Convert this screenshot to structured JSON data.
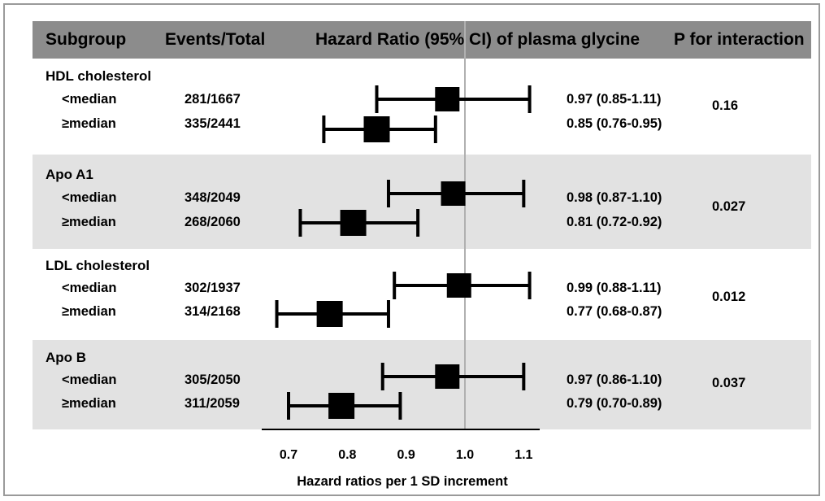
{
  "header": {
    "subgroup": "Subgroup",
    "events": "Events/Total",
    "hr": "Hazard Ratio (95% CI) of plasma glycine",
    "p": "P for interaction"
  },
  "groups": [
    {
      "label": "HDL cholesterol",
      "p": "0.16",
      "rows": [
        {
          "label": "<median",
          "events": "281/1667",
          "ci": "0.97 (0.85-1.11)"
        },
        {
          "label": "≥median",
          "events": "335/2441",
          "ci": "0.85 (0.76-0.95)"
        }
      ]
    },
    {
      "label": "Apo A1",
      "p": "0.027",
      "rows": [
        {
          "label": "<median",
          "events": "348/2049",
          "ci": "0.98 (0.87-1.10)"
        },
        {
          "label": "≥median",
          "events": "268/2060",
          "ci": "0.81 (0.72-0.92)"
        }
      ]
    },
    {
      "label": "LDL cholesterol",
      "p": "0.012",
      "rows": [
        {
          "label": "<median",
          "events": "302/1937",
          "ci": "0.99 (0.88-1.11)"
        },
        {
          "label": "≥median",
          "events": "314/2168",
          "ci": "0.77 (0.68-0.87)"
        }
      ]
    },
    {
      "label": "Apo B",
      "p": "0.037",
      "rows": [
        {
          "label": "<median",
          "events": "305/2050",
          "ci": "0.97 (0.86-1.10)"
        },
        {
          "label": "≥median",
          "events": "311/2059",
          "ci": "0.79 (0.70-0.89)"
        }
      ]
    }
  ],
  "chart_data": {
    "type": "forest",
    "xlabel": "Hazard ratios per 1 SD increment",
    "xlim": [
      0.65,
      1.15
    ],
    "reference_line": 1.0,
    "ticks": [
      0.7,
      0.8,
      0.9,
      1.0,
      1.1
    ],
    "tick_labels": [
      "0.7",
      "0.8",
      "0.9",
      "1.0",
      "1.1"
    ],
    "rows": [
      {
        "group": "HDL cholesterol",
        "label": "<median",
        "hr": 0.97,
        "lo": 0.85,
        "hi": 1.11
      },
      {
        "group": "HDL cholesterol",
        "label": "≥median",
        "hr": 0.85,
        "lo": 0.76,
        "hi": 0.95
      },
      {
        "group": "Apo A1",
        "label": "<median",
        "hr": 0.98,
        "lo": 0.87,
        "hi": 1.1
      },
      {
        "group": "Apo A1",
        "label": "≥median",
        "hr": 0.81,
        "lo": 0.72,
        "hi": 0.92
      },
      {
        "group": "LDL cholesterol",
        "label": "<median",
        "hr": 0.99,
        "lo": 0.88,
        "hi": 1.11
      },
      {
        "group": "LDL cholesterol",
        "label": "≥median",
        "hr": 0.77,
        "lo": 0.68,
        "hi": 0.87
      },
      {
        "group": "Apo B",
        "label": "<median",
        "hr": 0.97,
        "lo": 0.86,
        "hi": 1.1
      },
      {
        "group": "Apo B",
        "label": "≥median",
        "hr": 0.79,
        "lo": 0.7,
        "hi": 0.89
      }
    ],
    "colors": {
      "marker": "#000000",
      "reference": "#b0b0b0",
      "header": "#8c8c8c",
      "band": "#e2e2e2"
    }
  }
}
